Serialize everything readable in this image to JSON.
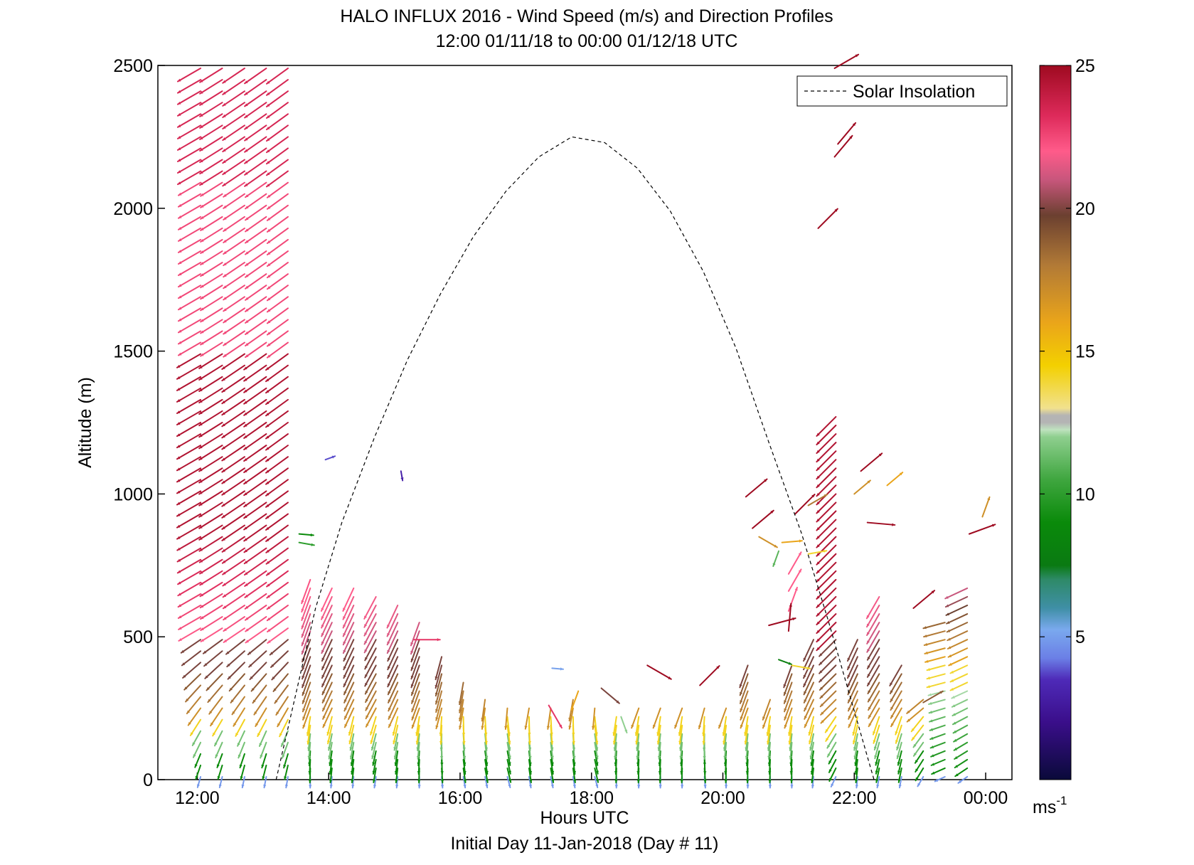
{
  "chart_data": {
    "type": "quiver",
    "title": "HALO INFLUX 2016 - Wind Speed (m/s) and Direction Profiles",
    "subtitle": "12:00 01/11/18 to 00:00 01/12/18  UTC",
    "xlabel": "Hours UTC",
    "xlabel2": "Initial Day 11-Jan-2018 (Day # 11)",
    "ylabel": "Altitude (m)",
    "xlim": [
      11.4,
      24.4
    ],
    "ylim": [
      0,
      2500
    ],
    "x_ticks": [
      12,
      14,
      16,
      18,
      20,
      22,
      24
    ],
    "x_tick_labels": [
      "12:00",
      "14:00",
      "16:00",
      "18:00",
      "20:00",
      "22:00",
      "00:00"
    ],
    "y_ticks": [
      0,
      500,
      1000,
      1500,
      2000,
      2500
    ],
    "y_tick_labels": [
      "0",
      "500",
      "1000",
      "1500",
      "2000",
      "2500"
    ],
    "legend": {
      "label": "Solar Insolation",
      "placement": "top-right"
    },
    "colorbar": {
      "min": 0,
      "max": 25,
      "ticks": [
        5,
        10,
        15,
        20,
        25
      ],
      "tick_labels": [
        "5",
        "10",
        "15",
        "20",
        "25"
      ],
      "unit_base": "ms",
      "unit_exp": "-1"
    },
    "solar_insolation": {
      "x": [
        13.2,
        13.5,
        13.8,
        14.2,
        14.7,
        15.2,
        15.7,
        16.2,
        16.7,
        17.2,
        17.7,
        18.2,
        18.7,
        19.2,
        19.7,
        20.2,
        20.7,
        21.2,
        21.6,
        22.0,
        22.3
      ],
      "y": [
        0,
        300,
        600,
        900,
        1200,
        1470,
        1700,
        1900,
        2060,
        2180,
        2250,
        2230,
        2140,
        1990,
        1780,
        1510,
        1180,
        860,
        560,
        240,
        0
      ]
    },
    "profiles": [
      {
        "t": 12.05,
        "top": 2500,
        "dir": 240,
        "deep": true
      },
      {
        "t": 12.38,
        "top": 2500,
        "dir": 238,
        "deep": true
      },
      {
        "t": 12.72,
        "top": 2500,
        "dir": 236,
        "deep": true
      },
      {
        "t": 13.05,
        "top": 2500,
        "dir": 235,
        "deep": true
      },
      {
        "t": 13.38,
        "top": 2500,
        "dir": 234,
        "deep": true
      },
      {
        "t": 13.72,
        "top": 720,
        "dir": 200
      },
      {
        "t": 14.05,
        "top": 700,
        "dir": 205
      },
      {
        "t": 14.38,
        "top": 680,
        "dir": 205
      },
      {
        "t": 14.72,
        "top": 660,
        "dir": 208
      },
      {
        "t": 15.05,
        "top": 620,
        "dir": 205
      },
      {
        "t": 15.38,
        "top": 580,
        "dir": 200
      },
      {
        "t": 15.72,
        "top": 460,
        "dir": 195
      },
      {
        "t": 16.05,
        "top": 370,
        "dir": 190
      },
      {
        "t": 16.38,
        "top": 290,
        "dir": 188
      },
      {
        "t": 16.72,
        "top": 260,
        "dir": 185
      },
      {
        "t": 17.05,
        "top": 270,
        "dir": 190
      },
      {
        "t": 17.38,
        "top": 260,
        "dir": 188
      },
      {
        "t": 17.72,
        "top": 300,
        "dir": 190
      },
      {
        "t": 18.05,
        "top": 280,
        "dir": 185
      },
      {
        "t": 18.38,
        "top": 250,
        "dir": 200
      },
      {
        "t": 18.72,
        "top": 260,
        "dir": 200
      },
      {
        "t": 19.05,
        "top": 280,
        "dir": 200
      },
      {
        "t": 19.38,
        "top": 280,
        "dir": 200
      },
      {
        "t": 19.72,
        "top": 280,
        "dir": 195
      },
      {
        "t": 20.05,
        "top": 260,
        "dir": 200
      },
      {
        "t": 20.38,
        "top": 430,
        "dir": 200
      },
      {
        "t": 20.72,
        "top": 290,
        "dir": 200
      },
      {
        "t": 21.05,
        "top": 410,
        "dir": 200
      },
      {
        "t": 21.38,
        "top": 500,
        "dir": 205
      },
      {
        "t": 21.72,
        "top": 1300,
        "dir": 225,
        "mid": true
      },
      {
        "t": 22.05,
        "top": 500,
        "dir": 205
      },
      {
        "t": 22.38,
        "top": 650,
        "dir": 210
      },
      {
        "t": 22.72,
        "top": 410,
        "dir": 210
      },
      {
        "t": 23.05,
        "top": 290,
        "dir": 230
      },
      {
        "t": 23.38,
        "top": 560,
        "dir": 255,
        "late": true
      },
      {
        "t": 23.72,
        "top": 700,
        "dir": 245,
        "late": true
      }
    ],
    "scattered": [
      {
        "t": 13.55,
        "h": 860,
        "dir": 95,
        "s": 9
      },
      {
        "t": 13.55,
        "h": 830,
        "dir": 100,
        "s": 10
      },
      {
        "t": 13.95,
        "h": 1120,
        "dir": 70,
        "s": 3.8
      },
      {
        "t": 15.1,
        "h": 1080,
        "dir": 170,
        "s": 3
      },
      {
        "t": 15.3,
        "h": 490,
        "dir": 90,
        "s": 23
      },
      {
        "t": 17.4,
        "h": 390,
        "dir": 95,
        "s": 5
      },
      {
        "t": 17.35,
        "h": 260,
        "dir": 150,
        "s": 23
      },
      {
        "t": 17.8,
        "h": 310,
        "dir": 200,
        "s": 16
      },
      {
        "t": 18.15,
        "h": 320,
        "dir": 130,
        "s": 20
      },
      {
        "t": 18.45,
        "h": 220,
        "dir": 160,
        "s": 12
      },
      {
        "t": 18.85,
        "h": 400,
        "dir": 120,
        "s": 25
      },
      {
        "t": 19.65,
        "h": 330,
        "dir": 45,
        "s": 25
      },
      {
        "t": 20.35,
        "h": 990,
        "dir": 50,
        "s": 25
      },
      {
        "t": 20.45,
        "h": 880,
        "dir": 50,
        "s": 25
      },
      {
        "t": 20.55,
        "h": 850,
        "dir": 120,
        "s": 17
      },
      {
        "t": 20.9,
        "h": 830,
        "dir": 85,
        "s": 16
      },
      {
        "t": 20.85,
        "h": 800,
        "dir": 200,
        "s": 11
      },
      {
        "t": 20.7,
        "h": 540,
        "dir": 75,
        "s": 25
      },
      {
        "t": 20.85,
        "h": 420,
        "dir": 110,
        "s": 8
      },
      {
        "t": 21.05,
        "h": 400,
        "dir": 100,
        "s": 14
      },
      {
        "t": 21.0,
        "h": 720,
        "dir": 30,
        "s": 22
      },
      {
        "t": 21.0,
        "h": 660,
        "dir": 30,
        "s": 22
      },
      {
        "t": 21.0,
        "h": 590,
        "dir": 20,
        "s": 22
      },
      {
        "t": 21.0,
        "h": 520,
        "dir": 5,
        "s": 25
      },
      {
        "t": 21.1,
        "h": 930,
        "dir": 45,
        "s": 25
      },
      {
        "t": 21.3,
        "h": 960,
        "dir": 60,
        "s": 18
      },
      {
        "t": 21.3,
        "h": 790,
        "dir": 80,
        "s": 14
      },
      {
        "t": 21.45,
        "h": 1930,
        "dir": 45,
        "s": 25
      },
      {
        "t": 21.7,
        "h": 2180,
        "dir": 40,
        "s": 25
      },
      {
        "t": 21.75,
        "h": 2225,
        "dir": 40,
        "s": 25
      },
      {
        "t": 21.7,
        "h": 2490,
        "dir": 60,
        "s": 25
      },
      {
        "t": 22.1,
        "h": 1080,
        "dir": 50,
        "s": 25
      },
      {
        "t": 22.0,
        "h": 1000,
        "dir": 50,
        "s": 17
      },
      {
        "t": 22.2,
        "h": 900,
        "dir": 95,
        "s": 25
      },
      {
        "t": 22.5,
        "h": 1030,
        "dir": 50,
        "s": 16
      },
      {
        "t": 22.9,
        "h": 600,
        "dir": 50,
        "s": 25
      },
      {
        "t": 23.05,
        "h": 270,
        "dir": 60,
        "s": 19
      },
      {
        "t": 23.75,
        "h": 860,
        "dir": 70,
        "s": 25
      },
      {
        "t": 23.95,
        "h": 920,
        "dir": 20,
        "s": 17
      }
    ]
  }
}
